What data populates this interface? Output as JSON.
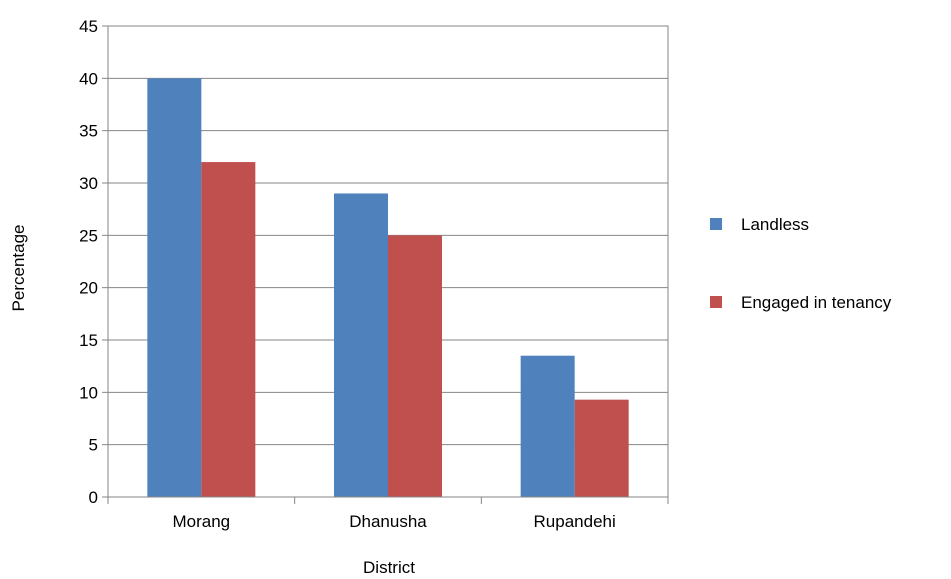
{
  "chart_data": {
    "type": "bar",
    "categories": [
      "Morang",
      "Dhanusha",
      "Rupandehi"
    ],
    "series": [
      {
        "name": "Landless",
        "values": [
          40,
          29,
          13.5
        ],
        "color": "#4F81BD"
      },
      {
        "name": "Engaged in tenancy",
        "values": [
          32,
          25,
          9.3
        ],
        "color": "#C0504D"
      }
    ],
    "title": "",
    "xlabel": "District",
    "ylabel": "Percentage",
    "ylim": [
      0,
      45
    ],
    "yticks": [
      0,
      5,
      10,
      15,
      20,
      25,
      30,
      35,
      40,
      45
    ],
    "grid": true,
    "legend_position": "right"
  }
}
